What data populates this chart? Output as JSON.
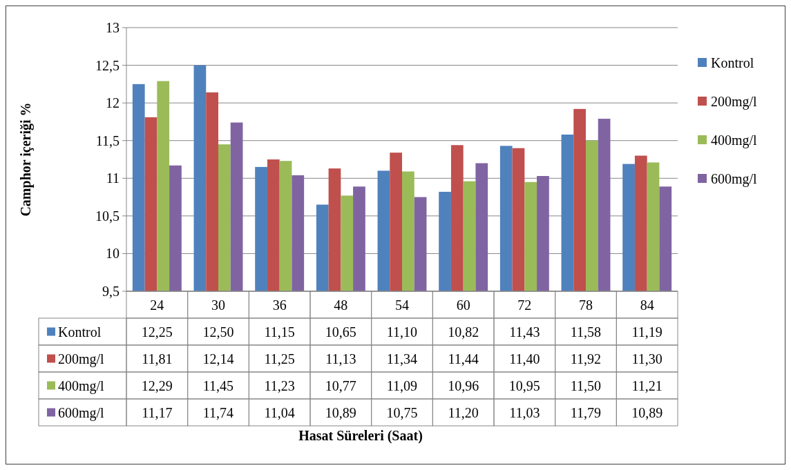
{
  "chart_data": {
    "type": "bar",
    "annotations": [
      "Hasat Süreleri (Saat)"
    ],
    "ylabel": "Camphor içeriği %",
    "categories": [
      "24",
      "30",
      "36",
      "48",
      "54",
      "60",
      "72",
      "78",
      "84"
    ],
    "ylim": [
      9.5,
      13
    ],
    "yticks": [
      {
        "value": 9.5,
        "label": "9,5"
      },
      {
        "value": 10,
        "label": "10"
      },
      {
        "value": 10.5,
        "label": "10,5"
      },
      {
        "value": 11,
        "label": "11"
      },
      {
        "value": 11.5,
        "label": "11,5"
      },
      {
        "value": 12,
        "label": "12"
      },
      {
        "value": 12.5,
        "label": "12,5"
      },
      {
        "value": 13,
        "label": "13"
      }
    ],
    "grid": "y",
    "legend": "right",
    "series": [
      {
        "name": "Kontrol",
        "color": "#4f81bd",
        "values": [
          12.25,
          12.5,
          11.15,
          10.65,
          11.1,
          10.82,
          11.43,
          11.58,
          11.19
        ],
        "value_labels": [
          "12,25",
          "12,50",
          "11,15",
          "10,65",
          "11,10",
          "10,82",
          "11,43",
          "11,58",
          "11,19"
        ]
      },
      {
        "name": "200mg/l",
        "color": "#c0504d",
        "values": [
          11.81,
          12.14,
          11.25,
          11.13,
          11.34,
          11.44,
          11.4,
          11.92,
          11.3
        ],
        "value_labels": [
          "11,81",
          "12,14",
          "11,25",
          "11,13",
          "11,34",
          "11,44",
          "11,40",
          "11,92",
          "11,30"
        ]
      },
      {
        "name": "400mg/l",
        "color": "#9bbb59",
        "values": [
          12.29,
          11.45,
          11.23,
          10.77,
          11.09,
          10.96,
          10.95,
          11.5,
          11.21
        ],
        "value_labels": [
          "12,29",
          "11,45",
          "11,23",
          "10,77",
          "11,09",
          "10,96",
          "10,95",
          "11,50",
          "11,21"
        ]
      },
      {
        "name": "600mg/l",
        "color": "#8064a2",
        "values": [
          11.17,
          11.74,
          11.04,
          10.89,
          10.75,
          11.2,
          11.03,
          11.79,
          10.89
        ],
        "value_labels": [
          "11,17",
          "11,74",
          "11,04",
          "10,89",
          "10,75",
          "11,20",
          "11,03",
          "11,79",
          "10,89"
        ]
      }
    ]
  }
}
